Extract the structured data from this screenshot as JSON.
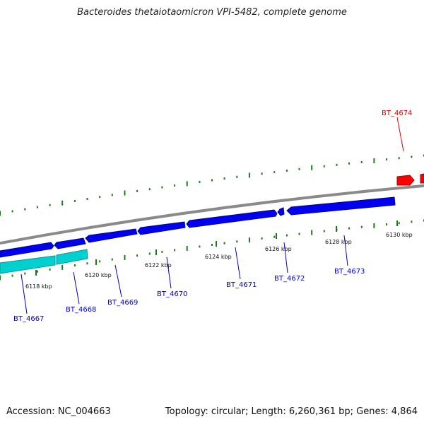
{
  "title": "Bacteroides thetaiotaomicron VPI-5482, complete genome",
  "footer": {
    "accession": "Accession: NC_004663",
    "summary": "Topology: circular; Length: 6,260,361 bp; Genes: 4,864"
  },
  "colors": {
    "forward_gene": "#0000ee",
    "forward_gene_dark": "#00009a",
    "reverse_gene": "#00cccc",
    "highlight_gene": "#ff0000",
    "backbone": "#8a8a8a",
    "gc_ticks": "#1a7a1a"
  },
  "gene_labels": [
    {
      "name": "BT_4674",
      "color": "#dd0000"
    },
    {
      "name": "BT_4667",
      "color": "#0000cc"
    },
    {
      "name": "BT_4668",
      "color": "#0000cc"
    },
    {
      "name": "BT_4669",
      "color": "#0000cc"
    },
    {
      "name": "BT_4670",
      "color": "#0000cc"
    },
    {
      "name": "BT_4671",
      "color": "#0000cc"
    },
    {
      "name": "BT_4672",
      "color": "#0000cc"
    },
    {
      "name": "BT_4673",
      "color": "#0000cc"
    }
  ],
  "scale_ticks": [
    "6118 kbp",
    "6120 kbp",
    "6122 kbp",
    "6124 kbp",
    "6126 kbp",
    "6128 kbp",
    "6130 kbp"
  ]
}
